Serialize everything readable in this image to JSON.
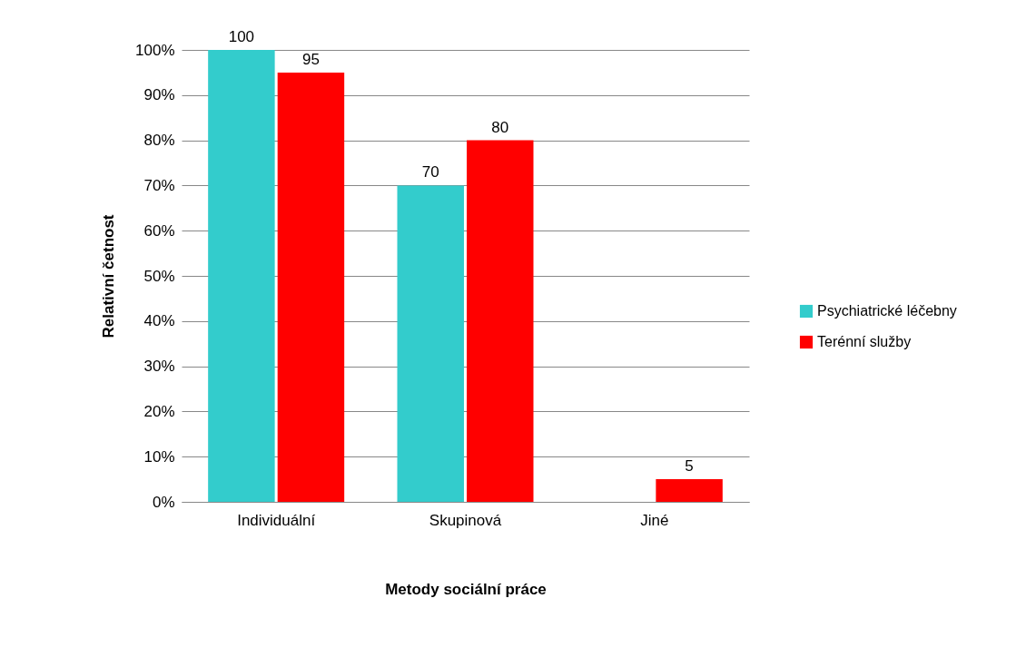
{
  "chart_data": {
    "type": "bar",
    "xlabel": "Metody sociální práce",
    "ylabel": "Relativní četnost",
    "categories": [
      "Individuální",
      "Skupinová",
      "Jiné"
    ],
    "series": [
      {
        "name": "Psychiatrické léčebny",
        "color": "#33cccc",
        "values": [
          100,
          70,
          null
        ],
        "value_labels": [
          "100",
          "70",
          null
        ]
      },
      {
        "name": "Terénní služby",
        "color": "#ff0000",
        "values": [
          95,
          80,
          5
        ],
        "value_labels": [
          "95",
          "80",
          "5"
        ]
      }
    ],
    "ylim": [
      0,
      100
    ],
    "yticks": [
      {
        "value": 0,
        "label": "0%"
      },
      {
        "value": 10,
        "label": "10%"
      },
      {
        "value": 20,
        "label": "20%"
      },
      {
        "value": 30,
        "label": "30%"
      },
      {
        "value": 40,
        "label": "40%"
      },
      {
        "value": 50,
        "label": "50%"
      },
      {
        "value": 60,
        "label": "60%"
      },
      {
        "value": 70,
        "label": "70%"
      },
      {
        "value": 80,
        "label": "80%"
      },
      {
        "value": 90,
        "label": "90%"
      },
      {
        "value": 100,
        "label": "100%"
      }
    ],
    "grid": "y",
    "legend": "right"
  }
}
